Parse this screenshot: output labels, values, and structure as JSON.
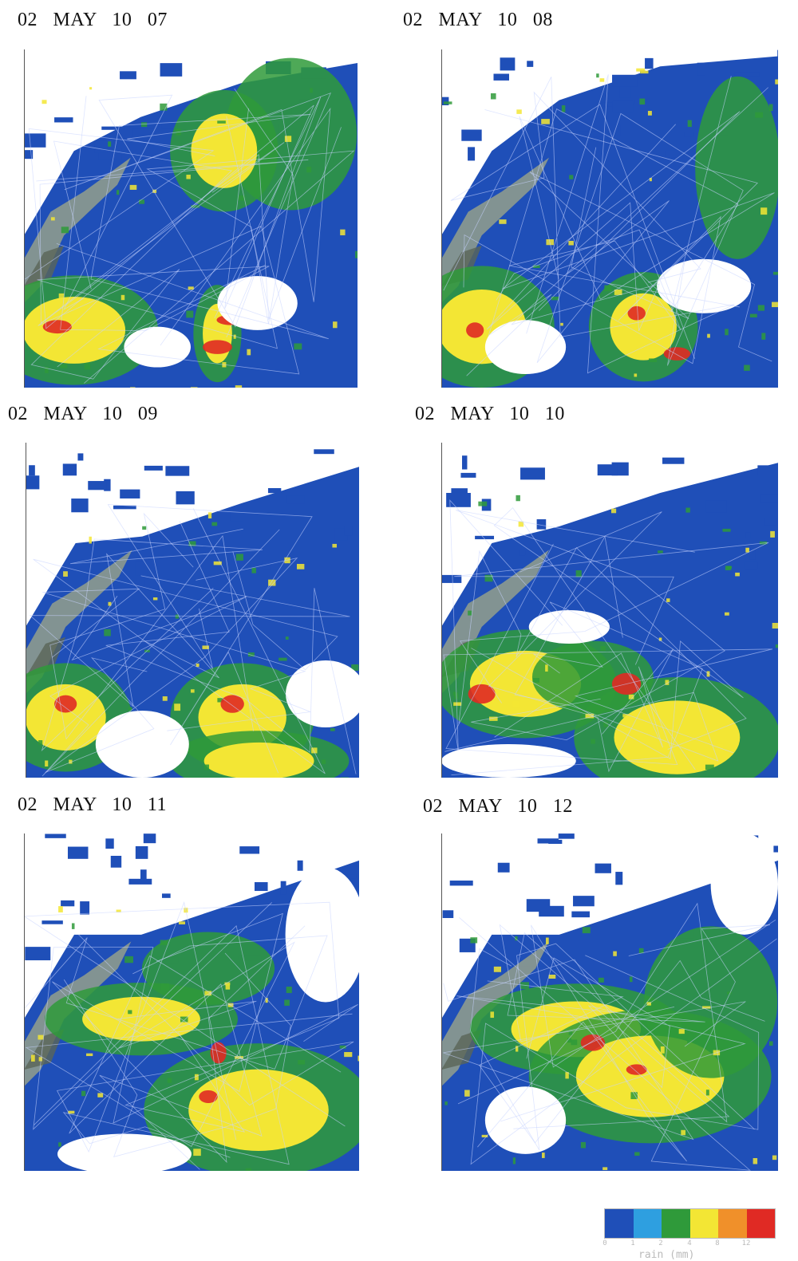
{
  "panels": [
    {
      "label": "02   MAY   10   07"
    },
    {
      "label": "02   MAY   10   08"
    },
    {
      "label": "02   MAY   10   09"
    },
    {
      "label": "02   MAY   10   10"
    },
    {
      "label": "02   MAY   10   11"
    },
    {
      "label": "02   MAY   10   12"
    }
  ],
  "legend": {
    "title": "rain (mm)",
    "ticks": [
      "0",
      "1",
      "2",
      "4",
      "8",
      "12"
    ],
    "colors": [
      "#1f4fb8",
      "#2e9fe0",
      "#2f9a3a",
      "#f3e634",
      "#f0902a",
      "#e02a24"
    ]
  },
  "colors": {
    "land": "#8d9a8e",
    "land_dark": "#5a6558",
    "rain_base": "#1f4fb8",
    "rain_green": "#2f9a3a",
    "rain_yellow": "#f3e634",
    "rain_red": "#e02a24",
    "boundary": "#c8d4ff"
  }
}
